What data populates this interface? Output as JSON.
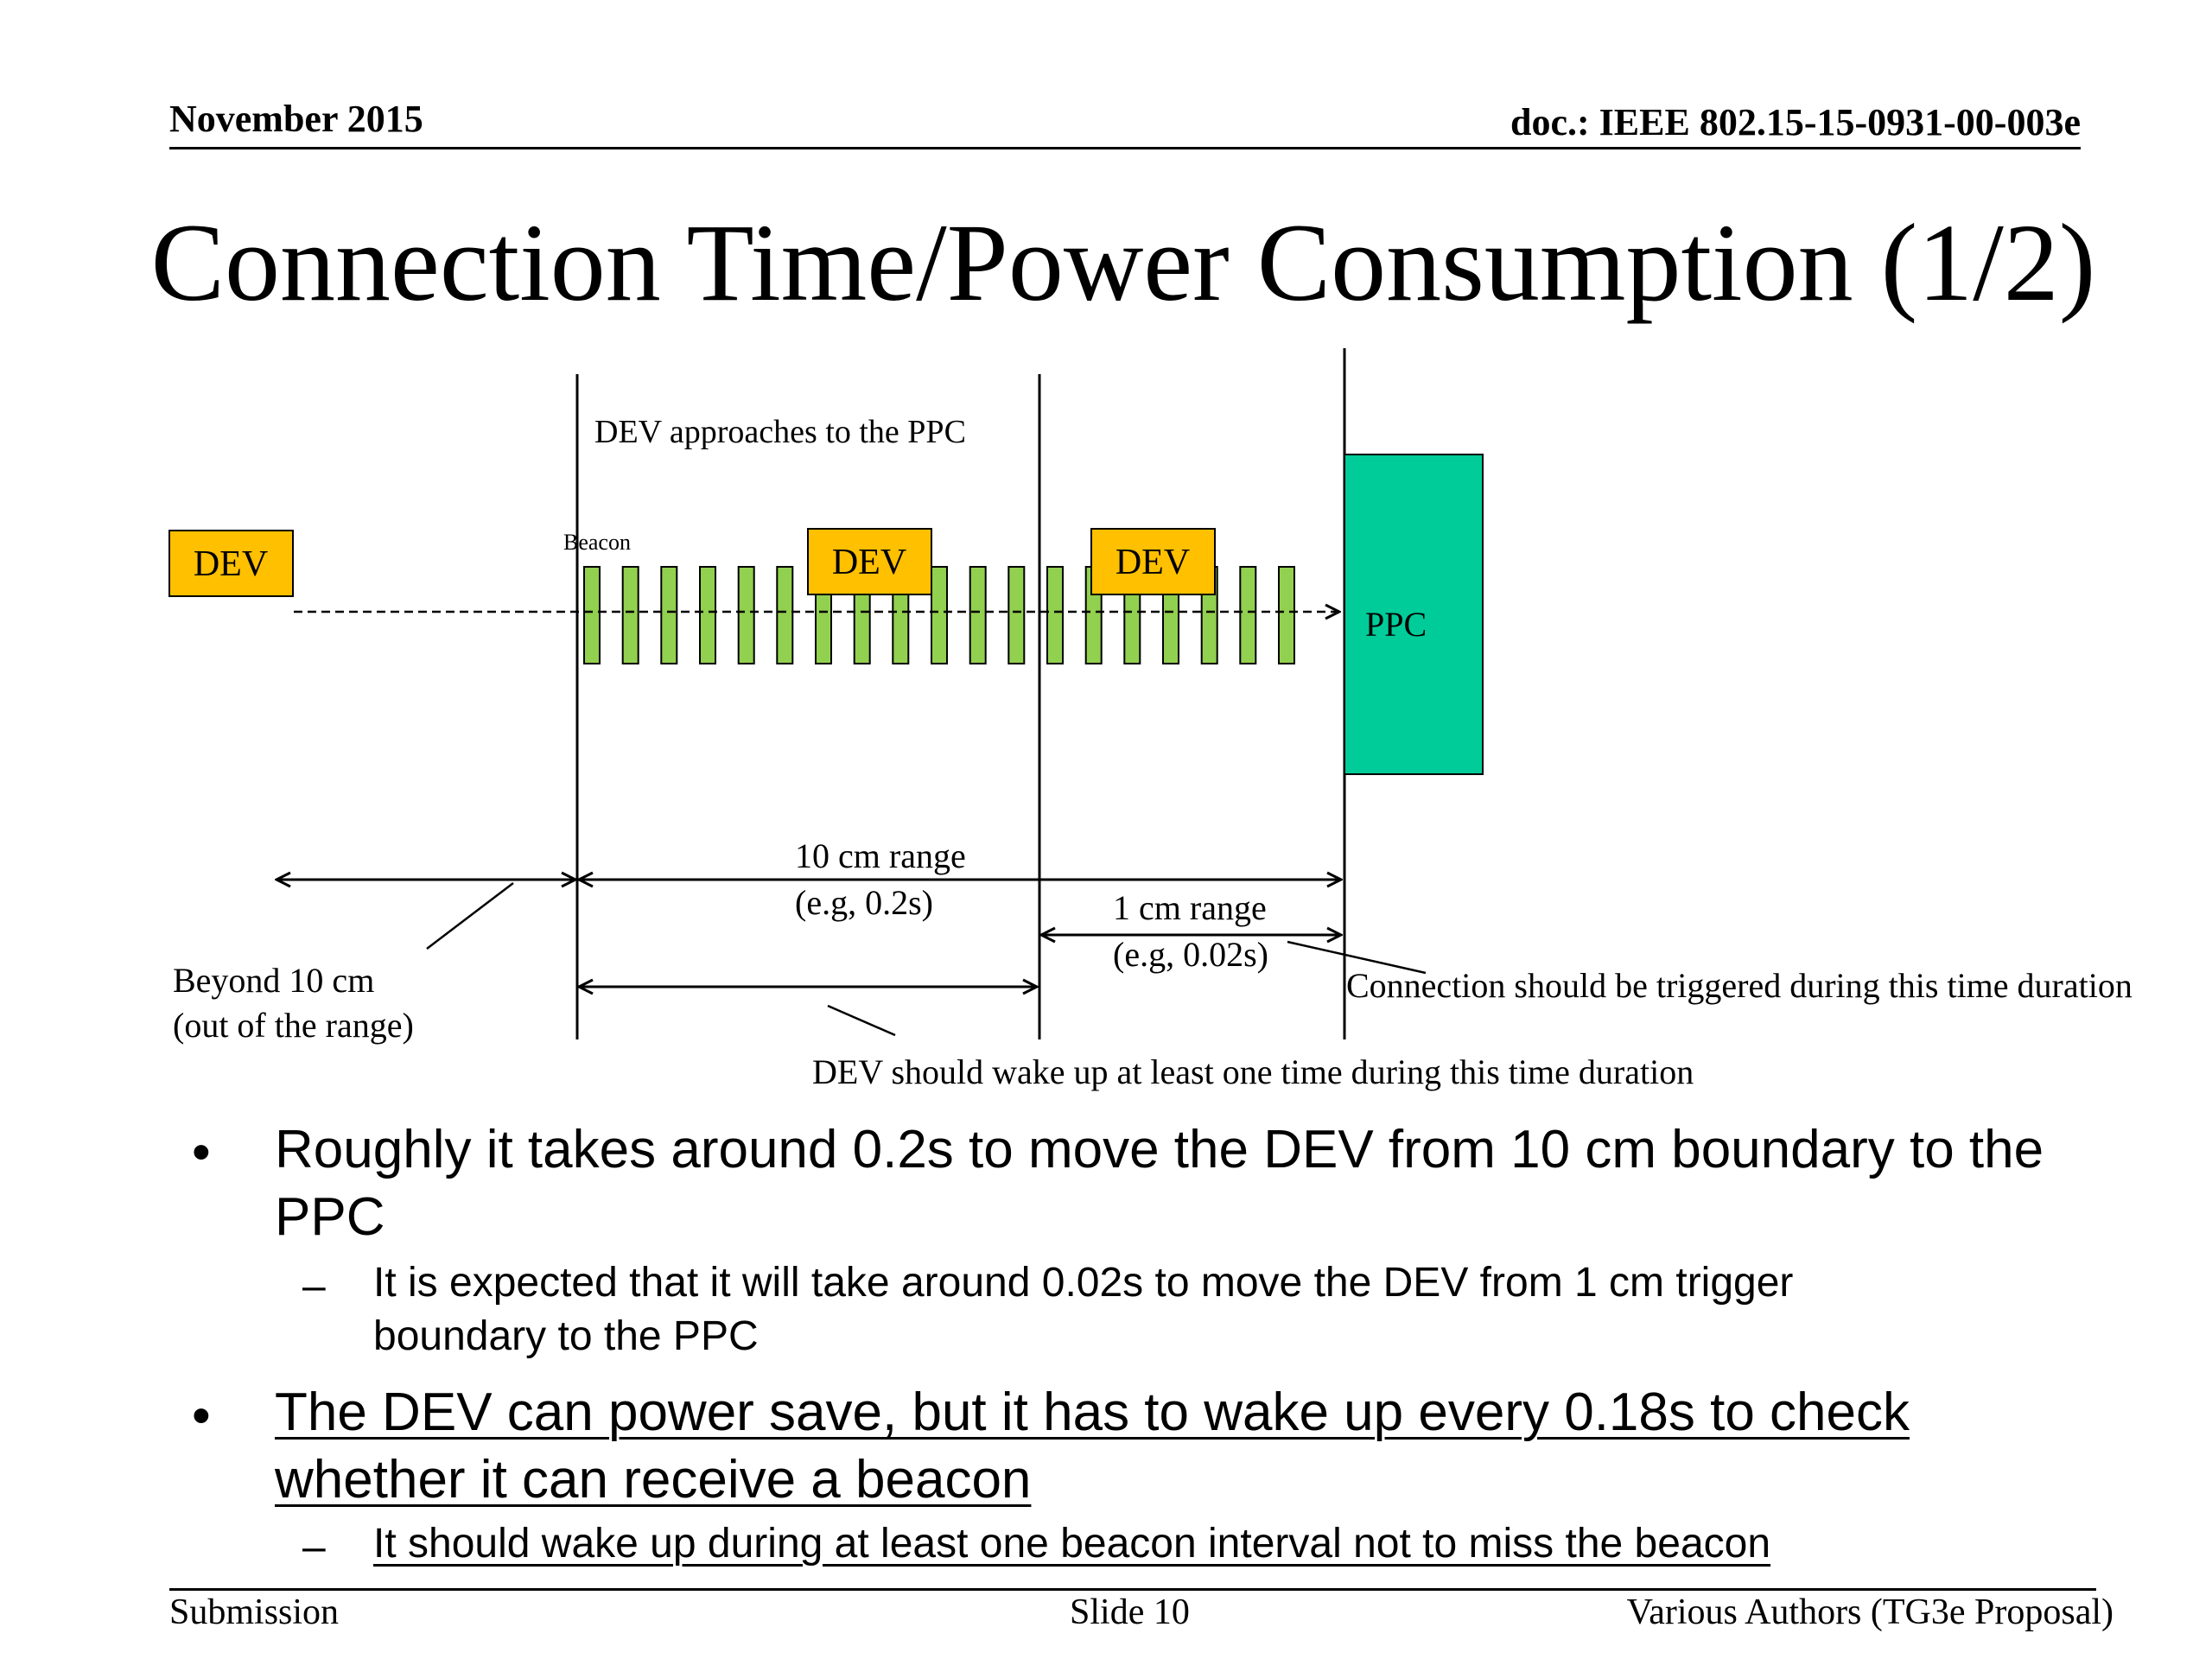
{
  "header": {
    "date": "November 2015",
    "doc_id": "doc.: IEEE 802.15-15-0931-00-003e"
  },
  "title": "Connection Time/Power Consumption (1/2)",
  "diagram": {
    "approach_label": "DEV approaches to the PPC",
    "dev_label": "DEV",
    "beacon_label": "Beacon",
    "ppc_label": "PPC",
    "range_10cm": "10 cm range",
    "range_10cm_example": "(e.g, 0.2s)",
    "range_1cm": "1 cm range",
    "range_1cm_example": "(e.g, 0.02s)",
    "beyond_label": "Beyond 10 cm",
    "beyond_sub": "(out of the range)",
    "trigger_note": "Connection should be triggered during this time duration",
    "wake_note": "DEV should wake up at least one time during this time duration",
    "colors": {
      "dev_box": "#FFC000",
      "beacon": "#92D050",
      "ppc_box": "#00CC99"
    }
  },
  "bullets": [
    {
      "text": "Roughly it takes around 0.2s to move the DEV from 10 cm boundary to the PPC",
      "sub": "It is expected that it will take around 0.02s to move the DEV from 1 cm trigger boundary to the PPC"
    },
    {
      "text": "The DEV can power save, but it has to wake up every 0.18s to check whether it can receive a beacon",
      "sub": "It should wake up during at least one beacon interval not to miss the beacon"
    }
  ],
  "bullet_mark": "•",
  "sub_mark": "–",
  "footer": {
    "left": "Submission",
    "center": "Slide 10",
    "right": "Various Authors (TG3e Proposal)"
  }
}
